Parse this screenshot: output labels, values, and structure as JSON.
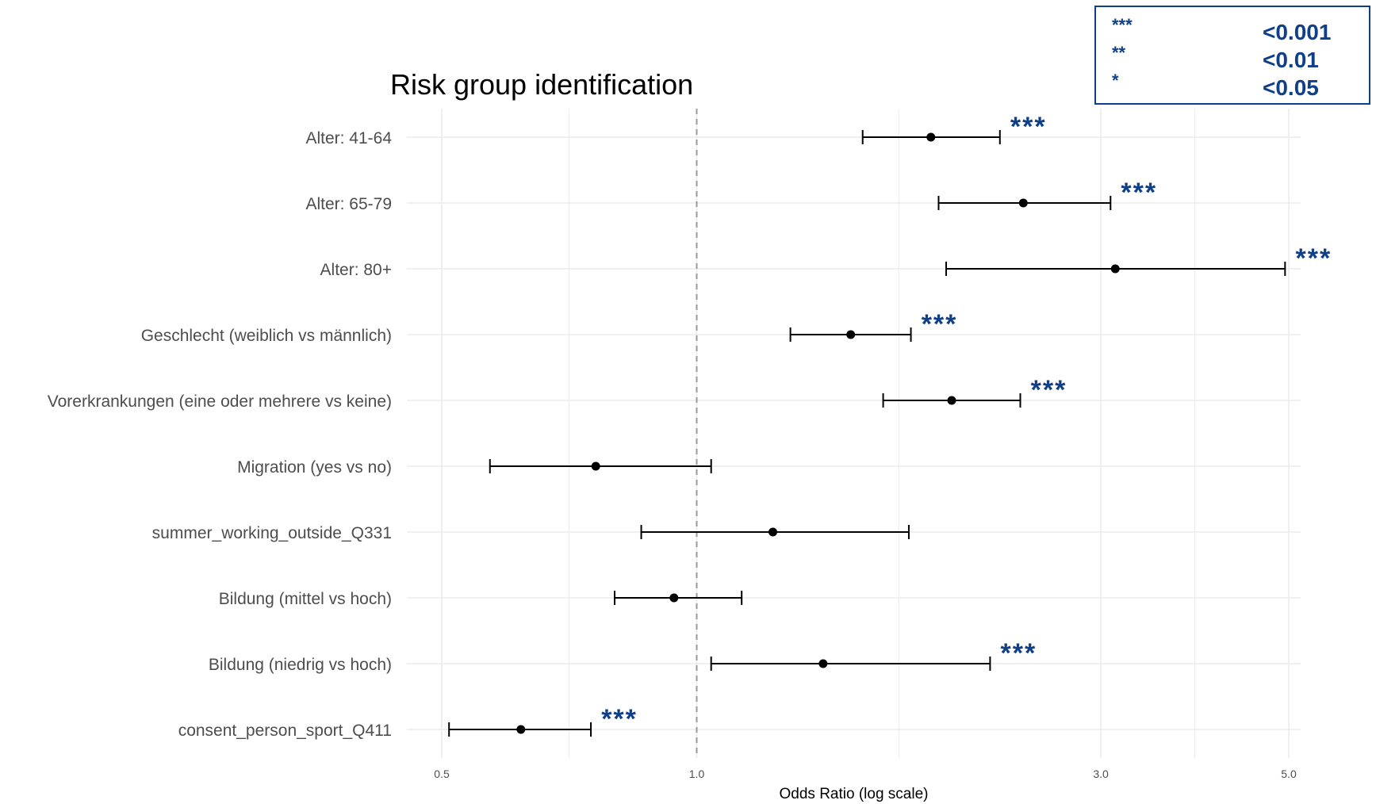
{
  "chart_data": {
    "type": "forest",
    "title": "Risk group identification",
    "xlabel": "Odds Ratio (log scale)",
    "x_scale": "log",
    "xlim": [
      0.5,
      5.0
    ],
    "x_ticks": [
      0.5,
      1.0,
      3.0,
      5.0
    ],
    "x_tick_labels": [
      "0.5",
      "1.0",
      "3.0",
      "5.0"
    ],
    "reference_line": 1.0,
    "grid": true,
    "rows": [
      {
        "label": "Alter: 41-64",
        "or": 1.89,
        "lo": 1.57,
        "hi": 2.28,
        "sig": "***"
      },
      {
        "label": "Alter: 65-79",
        "or": 2.43,
        "lo": 1.93,
        "hi": 3.08,
        "sig": "***"
      },
      {
        "label": "Alter: 80+",
        "or": 3.12,
        "lo": 1.97,
        "hi": 4.95,
        "sig": "***"
      },
      {
        "label": "Geschlecht (weiblich vs männlich)",
        "or": 1.52,
        "lo": 1.29,
        "hi": 1.79,
        "sig": "***"
      },
      {
        "label": "Vorerkrankungen (eine oder mehrere vs keine)",
        "or": 2.0,
        "lo": 1.66,
        "hi": 2.41,
        "sig": "***"
      },
      {
        "label": "Migration (yes vs no)",
        "or": 0.76,
        "lo": 0.57,
        "hi": 1.04,
        "sig": ""
      },
      {
        "label": "summer_working_outside_Q331",
        "or": 1.23,
        "lo": 0.86,
        "hi": 1.78,
        "sig": ""
      },
      {
        "label": "Bildung (mittel vs hoch)",
        "or": 0.94,
        "lo": 0.8,
        "hi": 1.13,
        "sig": ""
      },
      {
        "label": "Bildung (niedrig vs hoch)",
        "or": 1.41,
        "lo": 1.04,
        "hi": 2.22,
        "sig": "***"
      },
      {
        "label": "consent_person_sport_Q411",
        "or": 0.62,
        "lo": 0.51,
        "hi": 0.75,
        "sig": "***"
      }
    ]
  },
  "significance_legend": {
    "rows": [
      {
        "mark": "***",
        "value": "<0.001"
      },
      {
        "mark": "**",
        "value": "<0.01"
      },
      {
        "mark": "*",
        "value": "<0.05"
      }
    ]
  },
  "colors": {
    "significance": "#0f3f86",
    "errorbar": "#000000",
    "grid": "#ebebeb",
    "reference_line": "#9a9a9a",
    "axis_text": "#4d4d4d"
  }
}
